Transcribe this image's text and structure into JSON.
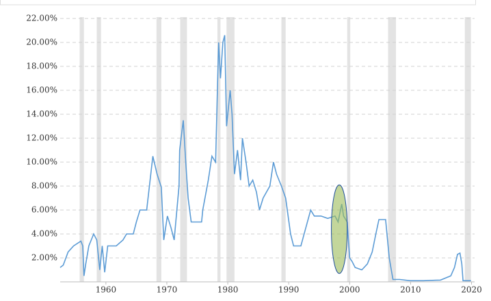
{
  "chart_data": {
    "type": "line",
    "x": [
      1952.5,
      1953.0,
      1953.8,
      1954.7,
      1955.9,
      1956.2,
      1956.4,
      1956.7,
      1957.2,
      1958.0,
      1958.5,
      1959.0,
      1959.4,
      1959.8,
      1960.3,
      1961.7,
      1962.8,
      1963.4,
      1964.5,
      1965.0,
      1965.6,
      1966.7,
      1967.7,
      1968.4,
      1969.1,
      1969.5,
      1970.1,
      1970.7,
      1971.2,
      1972.0,
      1972.1,
      1972.7,
      1973.1,
      1973.5,
      1974.0,
      1974.6,
      1975.7,
      1975.9,
      1976.8,
      1977.4,
      1978.0,
      1978.3,
      1978.5,
      1978.8,
      1979.2,
      1979.5,
      1979.8,
      1980.4,
      1980.7,
      1981.1,
      1981.6,
      1982.1,
      1982.4,
      1983.0,
      1983.5,
      1984.1,
      1984.7,
      1985.2,
      1985.8,
      1986.9,
      1987.5,
      1988.0,
      1988.8,
      1989.5,
      1990.3,
      1990.8,
      1992.0,
      1992.8,
      1993.6,
      1994.2,
      1995.3,
      1996.4,
      1997.6,
      1998.1,
      1998.7,
      1999.0,
      1999.6,
      2000.0,
      2000.4,
      2000.9,
      2002.0,
      2002.9,
      2003.7,
      2004.3,
      2004.8,
      2005.9,
      2006.5,
      2007.1,
      2008.2,
      2009.9,
      2012.1,
      2014.9,
      2016.6,
      2017.2,
      2017.7,
      2018.1,
      2018.4,
      2018.6,
      2019.9
    ],
    "series": [
      {
        "color": "#5b9bd5",
        "values": [
          1.2,
          1.4,
          2.5,
          3.0,
          3.4,
          3.0,
          0.5,
          1.5,
          3.0,
          4.0,
          3.5,
          1.0,
          3.0,
          0.8,
          3.0,
          3.0,
          3.5,
          4.0,
          4.0,
          5.0,
          6.0,
          6.0,
          10.5,
          9.0,
          7.9,
          3.5,
          5.5,
          4.5,
          3.5,
          8.0,
          11.0,
          13.5,
          10.0,
          7.0,
          5.0,
          5.0,
          5.0,
          6.0,
          8.5,
          10.5,
          10.0,
          16.0,
          20.0,
          17.0,
          20.0,
          20.6,
          13.0,
          16.0,
          14.0,
          9.0,
          11.0,
          8.5,
          12.0,
          10.0,
          8.0,
          8.5,
          7.5,
          6.0,
          7.0,
          8.0,
          10.0,
          9.0,
          8.0,
          7.0,
          4.0,
          3.0,
          3.0,
          4.5,
          6.0,
          5.5,
          5.5,
          5.3,
          5.5,
          5.0,
          6.5,
          5.5,
          5.0,
          2.0,
          1.7,
          1.2,
          1.0,
          1.5,
          2.5,
          4.0,
          5.2,
          5.2,
          2.0,
          0.2,
          0.2,
          0.1,
          0.1,
          0.15,
          0.5,
          1.2,
          2.3,
          2.4,
          1.5,
          0.1,
          0.1
        ]
      }
    ],
    "xlim": [
      1952.5,
      2020.5
    ],
    "xticks": [
      1960,
      1970,
      1980,
      1990,
      2000,
      2010,
      2020
    ],
    "ylim": [
      0,
      22
    ],
    "yticks": [
      {
        "value": 2,
        "label": "2.00%"
      },
      {
        "value": 4,
        "label": "4.00%"
      },
      {
        "value": 6,
        "label": "6.00%"
      },
      {
        "value": 8,
        "label": "8.00%"
      },
      {
        "value": 10,
        "label": "10.00%"
      },
      {
        "value": 12,
        "label": "12.00%"
      },
      {
        "value": 14,
        "label": "14.00%"
      },
      {
        "value": 16,
        "label": "16.00%"
      },
      {
        "value": 18,
        "label": "18.00%"
      },
      {
        "value": 20,
        "label": "20.00%"
      },
      {
        "value": 22,
        "label": "22.00%"
      }
    ],
    "grid": true,
    "recessions": [
      [
        1955.7,
        1956.4
      ],
      [
        1958.5,
        1959.2
      ],
      [
        1968.3,
        1969.1
      ],
      [
        1972.2,
        1973.3
      ],
      [
        1978.3,
        1978.8
      ],
      [
        1979.8,
        1981.1
      ],
      [
        1988.8,
        1989.5
      ],
      [
        1999.6,
        2000.1
      ],
      [
        2006.3,
        2007.6
      ],
      [
        2018.9,
        2019.9
      ]
    ],
    "recession_color": "#e3e3e3",
    "highlight": {
      "x": [
        1997.0,
        1999.6
      ],
      "y": [
        0.7,
        8.1
      ],
      "color": "#9bbb59"
    }
  }
}
